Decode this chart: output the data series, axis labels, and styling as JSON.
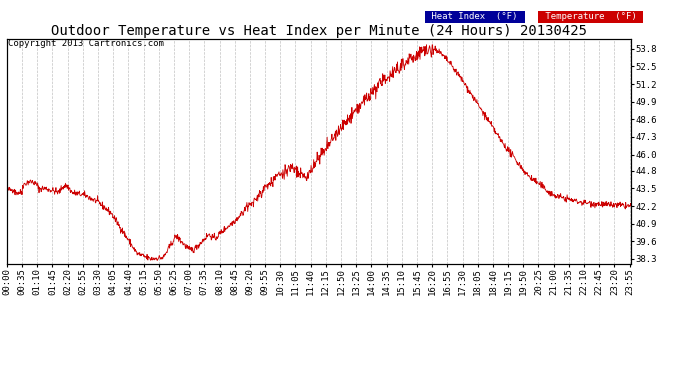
{
  "title": "Outdoor Temperature vs Heat Index per Minute (24 Hours) 20130425",
  "copyright": "Copyright 2013 Cartronics.com",
  "yticks": [
    38.3,
    39.6,
    40.9,
    42.2,
    43.5,
    44.8,
    46.0,
    47.3,
    48.6,
    49.9,
    51.2,
    52.5,
    53.8
  ],
  "ylim": [
    37.9,
    54.5
  ],
  "xtick_labels": [
    "00:00",
    "00:35",
    "01:10",
    "01:45",
    "02:20",
    "02:55",
    "03:30",
    "04:05",
    "04:40",
    "05:15",
    "05:50",
    "06:25",
    "07:00",
    "07:35",
    "08:10",
    "08:45",
    "09:20",
    "09:55",
    "10:30",
    "11:05",
    "11:40",
    "12:15",
    "12:50",
    "13:25",
    "14:00",
    "14:35",
    "15:10",
    "15:45",
    "16:20",
    "16:55",
    "17:30",
    "18:05",
    "18:40",
    "19:15",
    "19:50",
    "20:25",
    "21:00",
    "21:35",
    "22:10",
    "22:45",
    "23:20",
    "23:55"
  ],
  "line_color": "#cc0000",
  "background_color": "#ffffff",
  "grid_color": "#bbbbbb",
  "title_fontsize": 10,
  "copyright_fontsize": 6.5,
  "tick_fontsize": 6.5
}
